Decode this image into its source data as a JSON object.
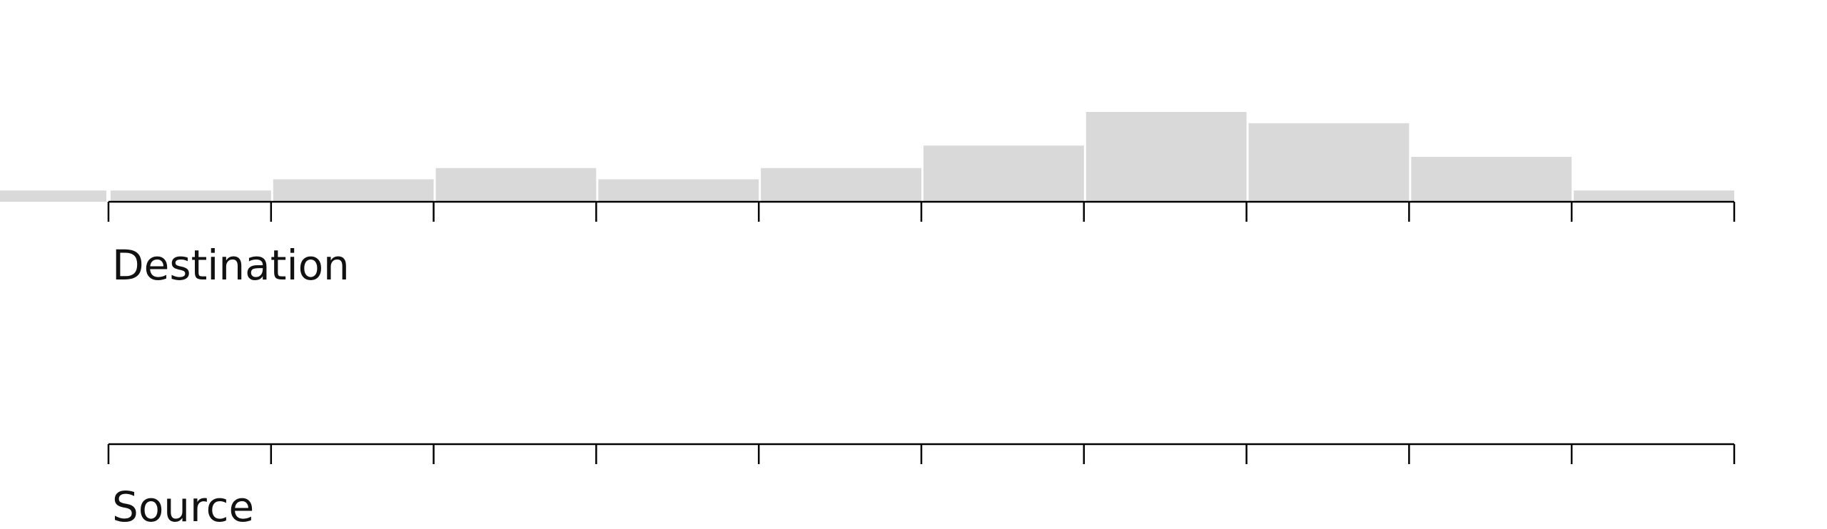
{
  "chart_data": {
    "type": "bar",
    "title": "",
    "colors": {
      "bar": "#d9d9d9",
      "axis": "#000000",
      "text": "#111111",
      "background": "#ffffff"
    },
    "grid": false,
    "axes": [
      {
        "id": "destination",
        "label": "Destination",
        "tick_count": 11,
        "histogram": {
          "bins": 11,
          "values": [
            1,
            2,
            3,
            2,
            3,
            5,
            8,
            7,
            4,
            1,
            0
          ],
          "ylim": [
            0,
            8
          ],
          "leading_overflow_value": 1
        }
      },
      {
        "id": "source",
        "label": "Source",
        "tick_count": 11,
        "histogram": null
      }
    ]
  }
}
